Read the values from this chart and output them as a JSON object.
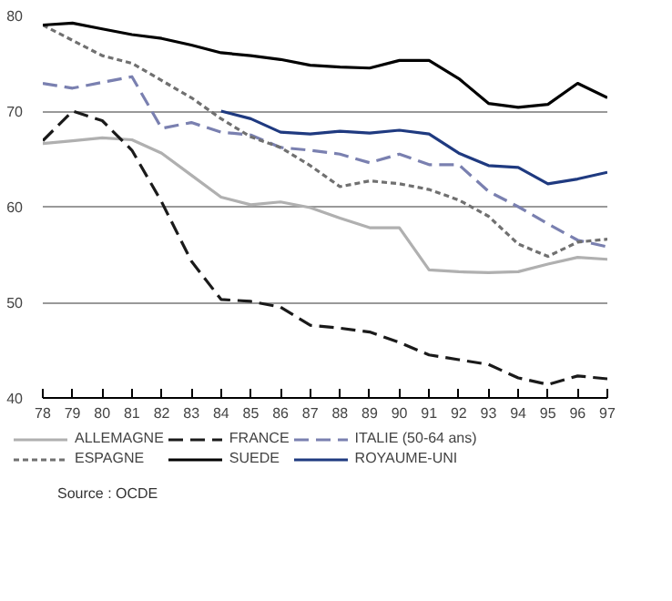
{
  "chart_data": {
    "type": "line",
    "x": [
      78,
      79,
      80,
      81,
      82,
      83,
      84,
      85,
      86,
      87,
      88,
      89,
      90,
      91,
      92,
      93,
      94,
      95,
      96,
      97
    ],
    "xlim": [
      78,
      97
    ],
    "xticks": [
      78,
      79,
      80,
      81,
      82,
      83,
      84,
      85,
      86,
      87,
      88,
      89,
      90,
      91,
      92,
      93,
      94,
      95,
      96,
      97
    ],
    "ylim": [
      40,
      80
    ],
    "yticks": [
      40,
      50,
      60,
      70,
      80
    ],
    "grid": "y",
    "legend": "bottom",
    "marker": "none",
    "series": [
      {
        "name": "ALLEMAGNE",
        "color": "#b0b0b0",
        "line_style": "solid",
        "values": [
          66.6,
          66.9,
          67.2,
          67.0,
          65.6,
          63.3,
          61.0,
          60.2,
          60.5,
          59.9,
          58.8,
          57.8,
          57.8,
          53.4,
          53.2,
          53.1,
          53.2,
          54.0,
          54.7,
          54.5
        ]
      },
      {
        "name": "FRANCE",
        "color": "#1a1a1a",
        "line_style": "dashed",
        "values": [
          66.9,
          70.0,
          69.0,
          65.9,
          60.5,
          54.3,
          50.3,
          50.1,
          49.5,
          47.6,
          47.3,
          46.9,
          45.8,
          44.5,
          44.0,
          43.5,
          42.1,
          41.4,
          42.3,
          42.0
        ]
      },
      {
        "name": "ITALIE (50-64 ans)",
        "color": "#7a80b0",
        "line_style": "dashed",
        "values": [
          72.9,
          72.4,
          73.0,
          73.6,
          68.2,
          68.8,
          67.8,
          67.5,
          66.2,
          65.9,
          65.5,
          64.6,
          65.5,
          64.4,
          64.4,
          61.6,
          60.0,
          58.2,
          56.5,
          55.8
        ]
      },
      {
        "name": "ESPAGNE",
        "color": "#707070",
        "line_style": "dotted",
        "values": [
          79.0,
          77.4,
          75.8,
          75.0,
          73.2,
          71.4,
          69.2,
          67.3,
          66.2,
          64.3,
          62.1,
          62.7,
          62.4,
          61.8,
          60.7,
          59.0,
          56.1,
          54.8,
          56.3,
          56.6
        ]
      },
      {
        "name": "SUEDE",
        "color": "#000000",
        "line_style": "solid",
        "values": [
          79.0,
          79.2,
          78.6,
          78.0,
          77.6,
          76.9,
          76.1,
          75.8,
          75.4,
          74.8,
          74.6,
          74.5,
          75.3,
          75.3,
          73.4,
          70.8,
          70.4,
          70.7,
          72.9,
          71.4
        ]
      },
      {
        "name": "ROYAUME-UNI",
        "color": "#1f3a80",
        "line_style": "solid",
        "values": [
          null,
          null,
          null,
          null,
          null,
          null,
          70.0,
          69.2,
          67.8,
          67.6,
          67.9,
          67.7,
          68.0,
          67.6,
          65.6,
          64.3,
          64.1,
          62.4,
          62.9,
          63.6
        ]
      }
    ],
    "annotations": [
      "Source : OCDE"
    ]
  }
}
